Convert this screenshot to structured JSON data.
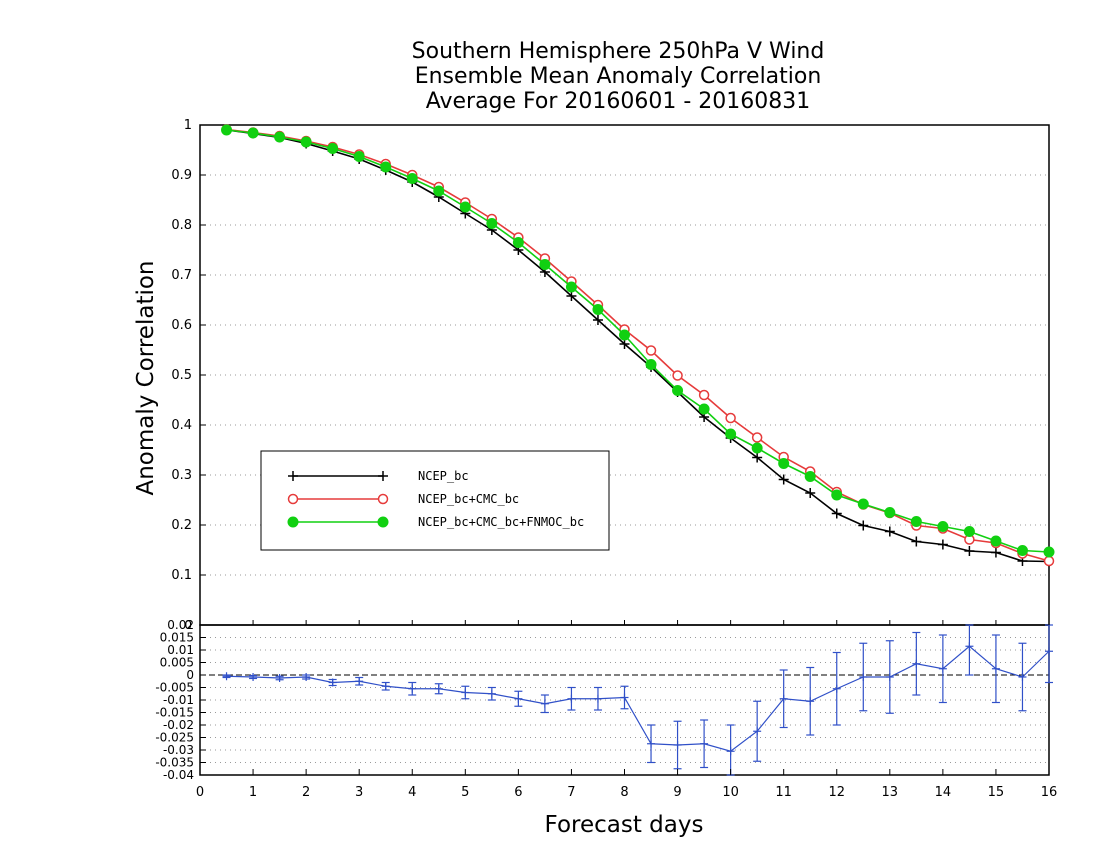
{
  "chart_data": [
    {
      "type": "line",
      "title_lines": [
        "Southern Hemisphere 250hPa V Wind",
        "Ensemble Mean Anomaly Correlation",
        "Average For 20160601 - 20160831"
      ],
      "xlabel": "Forecast days",
      "ylabel": "Anomaly Correlation",
      "xlim": [
        0,
        16
      ],
      "ylim": [
        0,
        1
      ],
      "x_ticks": [
        "0",
        "1",
        "2",
        "3",
        "4",
        "5",
        "6",
        "7",
        "8",
        "9",
        "10",
        "11",
        "12",
        "13",
        "14",
        "15",
        "16"
      ],
      "y_ticks": [
        "0",
        "0.1",
        "0.2",
        "0.3",
        "0.4",
        "0.5",
        "0.6",
        "0.7",
        "0.8",
        "0.9",
        "1"
      ],
      "grid": true,
      "legend_position": "left-middle",
      "x": [
        0.5,
        1,
        1.5,
        2,
        2.5,
        3,
        3.5,
        4,
        4.5,
        5,
        5.5,
        6,
        6.5,
        7,
        7.5,
        8,
        8.5,
        9,
        9.5,
        10,
        10.5,
        11,
        11.5,
        12,
        12.5,
        13,
        13.5,
        14,
        14.5,
        15,
        15.5,
        16
      ],
      "series": [
        {
          "name": "NCEP_bc",
          "color": "#000000",
          "marker": "plus",
          "values": [
            0.99,
            0.983,
            0.975,
            0.963,
            0.948,
            0.932,
            0.91,
            0.886,
            0.856,
            0.823,
            0.79,
            0.75,
            0.706,
            0.658,
            0.61,
            0.562,
            0.516,
            0.466,
            0.416,
            0.374,
            0.335,
            0.291,
            0.264,
            0.223,
            0.199,
            0.187,
            0.167,
            0.161,
            0.148,
            0.145,
            0.128,
            0.127
          ]
        },
        {
          "name": "NCEP_bc+CMC_bc",
          "color": "#e63b3b",
          "marker": "open-circle",
          "values": [
            0.991,
            0.985,
            0.978,
            0.968,
            0.956,
            0.941,
            0.922,
            0.9,
            0.876,
            0.845,
            0.812,
            0.775,
            0.733,
            0.687,
            0.64,
            0.591,
            0.549,
            0.499,
            0.46,
            0.414,
            0.375,
            0.336,
            0.307,
            0.266,
            0.241,
            0.224,
            0.199,
            0.193,
            0.171,
            0.164,
            0.143,
            0.128
          ]
        },
        {
          "name": "NCEP_bc+CMC_bc+FNMOC_bc",
          "color": "#11d011",
          "marker": "filled-circle",
          "values": [
            0.99,
            0.984,
            0.976,
            0.966,
            0.953,
            0.937,
            0.916,
            0.893,
            0.868,
            0.836,
            0.803,
            0.765,
            0.721,
            0.676,
            0.631,
            0.58,
            0.521,
            0.469,
            0.432,
            0.382,
            0.354,
            0.323,
            0.297,
            0.26,
            0.242,
            0.225,
            0.207,
            0.197,
            0.187,
            0.168,
            0.149,
            0.146
          ]
        }
      ]
    },
    {
      "type": "line",
      "xlim": [
        0,
        16
      ],
      "ylim": [
        -0.04,
        0.02
      ],
      "y_ticks": [
        "0.02",
        "0.015",
        "0.01",
        "0.005",
        "0",
        "-0.005",
        "-0.01",
        "-0.015",
        "-0.02",
        "-0.025",
        "-0.03",
        "-0.035",
        "-0.04"
      ],
      "grid": true,
      "zero_line": true,
      "color": "#3050c8",
      "x": [
        0.5,
        1,
        1.5,
        2,
        2.5,
        3,
        3.5,
        4,
        4.5,
        5,
        5.5,
        6,
        6.5,
        7,
        7.5,
        8,
        8.5,
        9,
        9.5,
        10,
        10.5,
        11,
        11.5,
        12,
        12.5,
        13,
        13.5,
        14,
        14.5,
        15,
        15.5,
        16
      ],
      "values": [
        -0.0005,
        -0.0008,
        -0.0012,
        -0.0008,
        -0.003,
        -0.0025,
        -0.0045,
        -0.0055,
        -0.0055,
        -0.007,
        -0.0075,
        -0.0095,
        -0.0115,
        -0.0095,
        -0.0095,
        -0.009,
        -0.0275,
        -0.028,
        -0.0275,
        -0.0305,
        -0.0225,
        -0.0095,
        -0.0105,
        -0.0055,
        -0.0008,
        -0.0008,
        0.0045,
        0.0025,
        0.0115,
        0.0025,
        -0.0008,
        0.0095
      ],
      "error_half": [
        0.0005,
        0.0006,
        0.0007,
        0.0008,
        0.0012,
        0.0015,
        0.0015,
        0.0025,
        0.002,
        0.0025,
        0.0025,
        0.003,
        0.0035,
        0.0045,
        0.0045,
        0.0045,
        0.0075,
        0.0095,
        0.0095,
        0.0105,
        0.012,
        0.0115,
        0.0135,
        0.0145,
        0.0135,
        0.0145,
        0.0125,
        0.0135,
        0.0115,
        0.0135,
        0.0135,
        0.0125
      ]
    }
  ]
}
